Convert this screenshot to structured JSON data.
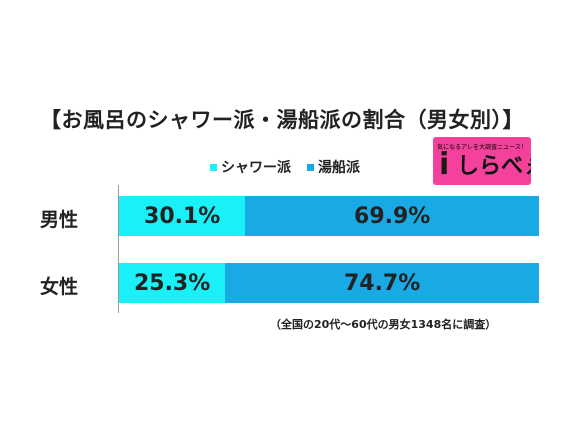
{
  "chart_data": {
    "type": "bar",
    "orientation": "horizontal",
    "stacked": true,
    "percent": true,
    "title": "【お風呂のシャワー派・湯船派の割合（男女別）】",
    "categories": [
      "男性",
      "女性"
    ],
    "series": [
      {
        "name": "シャワー派",
        "color": "#19f0f7",
        "values": [
          30.1,
          25.3
        ],
        "labels": [
          "30.1%",
          "25.3%"
        ]
      },
      {
        "name": "湯船派",
        "color": "#19a9e5",
        "values": [
          69.9,
          74.7
        ],
        "labels": [
          "69.9%",
          "74.7%"
        ]
      }
    ],
    "xlim": [
      0,
      100
    ],
    "legend_position": "top",
    "grid": false,
    "note": "（全国の20代～60代の男女1348名に調査）"
  },
  "legend_items": [
    {
      "marker": "■",
      "label": "シャワー派",
      "color": "#19f0f7"
    },
    {
      "marker": "■",
      "label": "湯船派",
      "color": "#19a9e5"
    }
  ],
  "logo": {
    "tagline": "気になるアレを大調査ニュース！",
    "mark": "i",
    "name": "しらべぇ",
    "background": "#f4419b"
  }
}
